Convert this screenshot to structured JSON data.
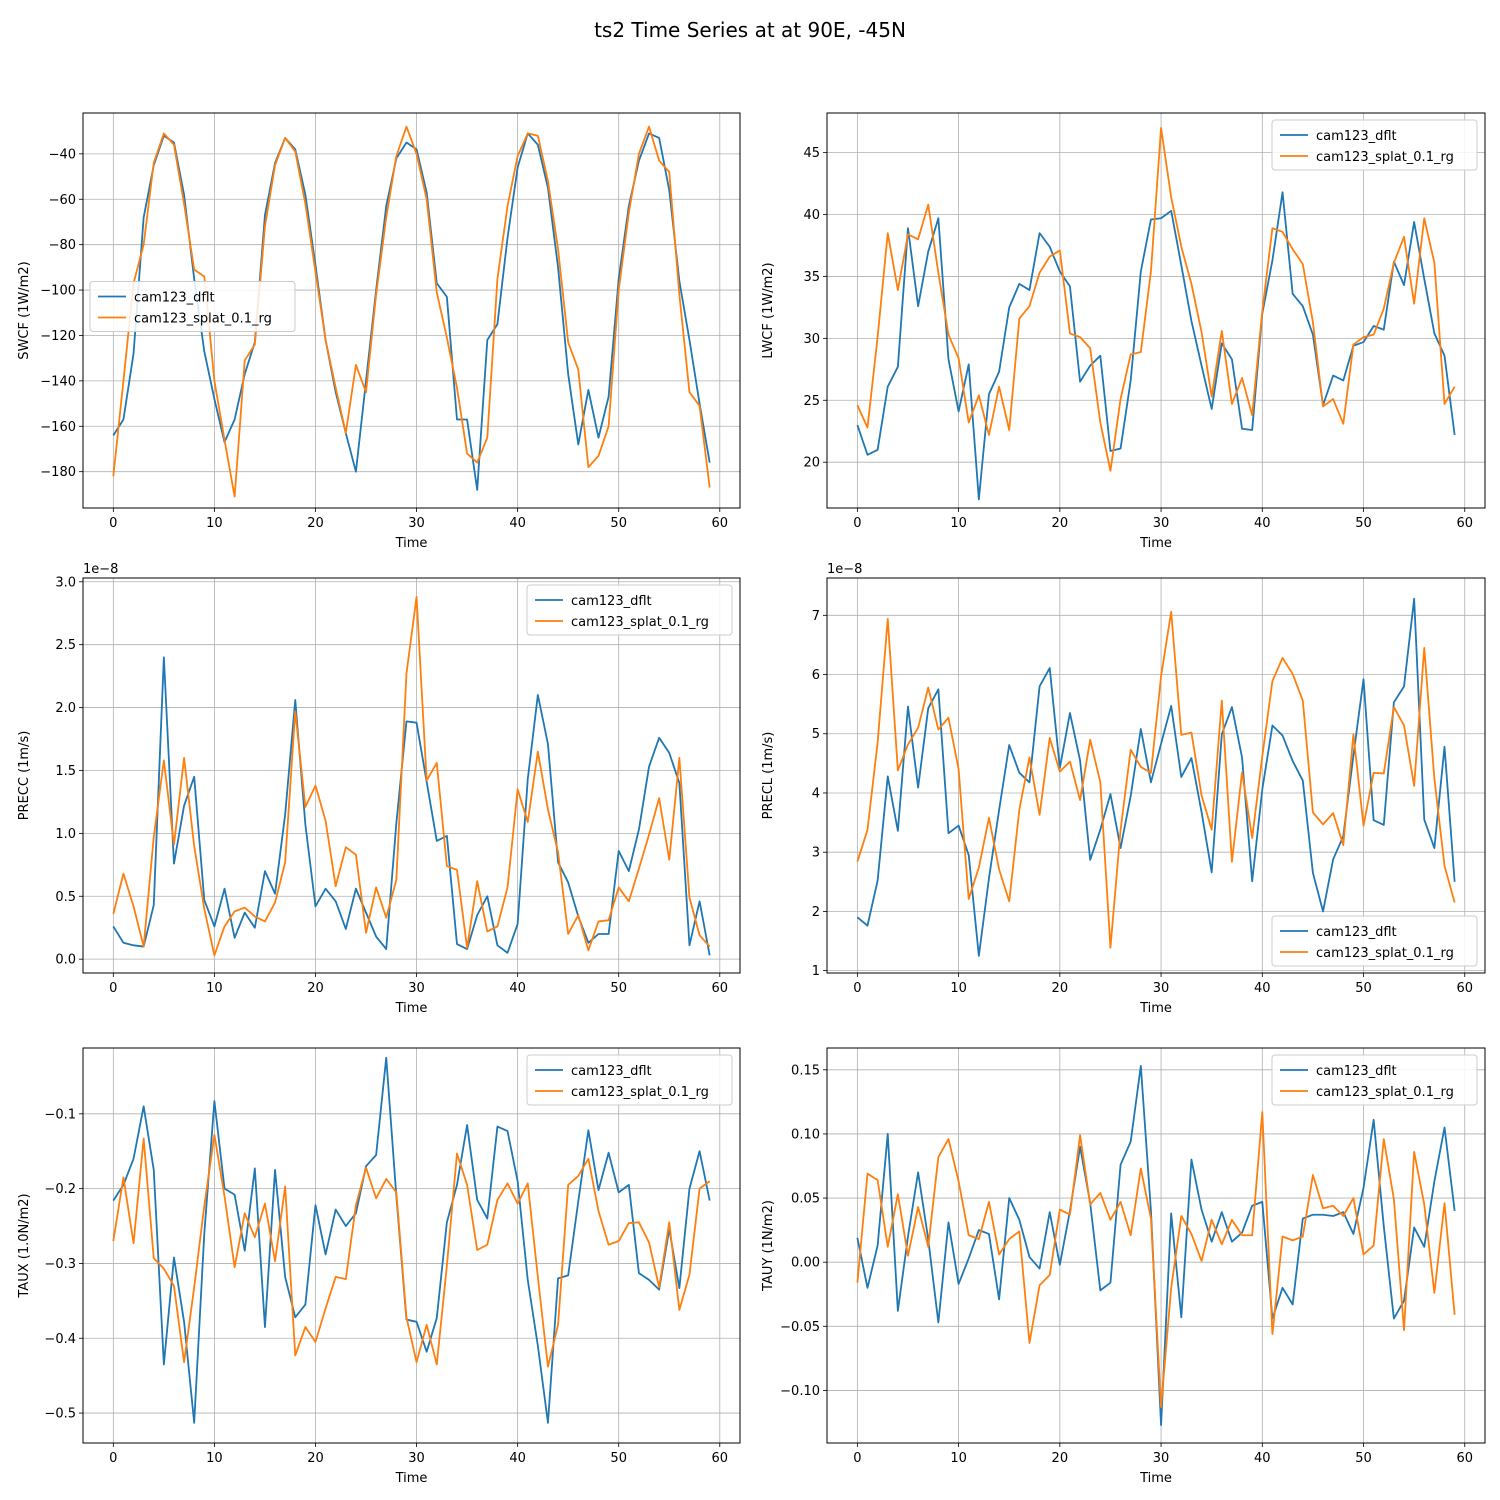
{
  "figure": {
    "title": "ts2 Time Series at at 90E, -45N"
  },
  "colors": {
    "cam123_dflt": "#1f77b4",
    "cam123_splat_0.1_rg": "#ff7f0e",
    "grid": "#b0b0b0"
  },
  "chart_data": [
    {
      "type": "line",
      "xlabel": "Time",
      "ylabel": "SWCF (1W/m2)",
      "xlim": [
        -3,
        62
      ],
      "ylim": [
        -196,
        -22
      ],
      "xticks": [
        0,
        10,
        20,
        30,
        40,
        50,
        60
      ],
      "yticks": [
        -40,
        -60,
        -80,
        -100,
        -120,
        -140,
        -160,
        -180
      ],
      "ytick_labels": [
        "−40",
        "−60",
        "−80",
        "−100",
        "−120",
        "−140",
        "−160",
        "−180"
      ],
      "offset_text": "",
      "legend": "center-left",
      "grid": true,
      "series": [
        {
          "name": "cam123_dflt",
          "values": [
            -164,
            -157,
            -128,
            -68,
            -45,
            -32,
            -35,
            -58,
            -95,
            -127,
            -148,
            -167,
            -157,
            -137,
            -123,
            -67,
            -44,
            -33,
            -38,
            -58,
            -89,
            -122,
            -145,
            -163,
            -180,
            -140,
            -100,
            -63,
            -42,
            -35,
            -38,
            -57,
            -97,
            -103,
            -157,
            -157,
            -188,
            -122,
            -115,
            -77,
            -46,
            -31,
            -36,
            -55,
            -90,
            -137,
            -168,
            -144,
            -165,
            -147,
            -95,
            -63,
            -43,
            -31,
            -33,
            -56,
            -96,
            -122,
            -150,
            -176
          ]
        },
        {
          "name": "cam123_splat_0.1_rg",
          "values": [
            -182,
            -140,
            -97,
            -80,
            -44,
            -31,
            -36,
            -62,
            -91,
            -94,
            -140,
            -166,
            -191,
            -131,
            -124,
            -72,
            -45,
            -33,
            -39,
            -62,
            -92,
            -122,
            -143,
            -163,
            -133,
            -145,
            -102,
            -68,
            -41,
            -28,
            -40,
            -60,
            -101,
            -121,
            -143,
            -172,
            -176,
            -165,
            -95,
            -63,
            -41,
            -31,
            -32,
            -52,
            -82,
            -123,
            -135,
            -178,
            -173,
            -160,
            -100,
            -66,
            -40,
            -28,
            -43,
            -48,
            -102,
            -145,
            -151,
            -187
          ]
        }
      ]
    },
    {
      "type": "line",
      "xlabel": "Time",
      "ylabel": "LWCF (1W/m2)",
      "xlim": [
        -3,
        62
      ],
      "ylim": [
        16.3,
        48.2
      ],
      "xticks": [
        0,
        10,
        20,
        30,
        40,
        50,
        60
      ],
      "yticks": [
        20,
        25,
        30,
        35,
        40,
        45
      ],
      "ytick_labels": [
        "20",
        "25",
        "30",
        "35",
        "40",
        "45"
      ],
      "offset_text": "",
      "legend": "top-right",
      "grid": true,
      "series": [
        {
          "name": "cam123_dflt",
          "values": [
            23.0,
            20.6,
            21.0,
            26.1,
            27.7,
            38.9,
            32.6,
            37.0,
            39.7,
            28.3,
            24.1,
            27.9,
            17.0,
            25.5,
            27.3,
            32.5,
            34.4,
            33.9,
            38.5,
            37.4,
            35.4,
            34.2,
            26.5,
            27.8,
            28.6,
            20.9,
            21.1,
            26.6,
            35.4,
            39.6,
            39.7,
            40.3,
            35.9,
            31.4,
            27.8,
            24.3,
            29.6,
            28.3,
            22.7,
            22.6,
            32.0,
            36.3,
            41.8,
            33.6,
            32.6,
            30.3,
            24.6,
            27.0,
            26.6,
            29.4,
            29.7,
            31.0,
            30.7,
            36.2,
            34.3,
            39.4,
            34.8,
            30.4,
            28.6,
            22.2
          ]
        },
        {
          "name": "cam123_splat_0.1_rg",
          "values": [
            24.6,
            22.8,
            30.1,
            38.5,
            33.9,
            38.4,
            38.0,
            40.8,
            35.3,
            30.3,
            28.4,
            23.2,
            25.4,
            22.2,
            26.1,
            22.6,
            31.6,
            32.6,
            35.3,
            36.6,
            37.1,
            30.4,
            30.1,
            29.2,
            23.2,
            19.3,
            25.1,
            28.7,
            28.9,
            35.4,
            47.0,
            41.4,
            37.4,
            34.4,
            30.5,
            25.3,
            30.6,
            24.7,
            26.8,
            23.8,
            32.2,
            38.9,
            38.6,
            37.2,
            36.0,
            31.3,
            24.5,
            25.1,
            23.1,
            29.5,
            30.1,
            30.3,
            32.4,
            36.1,
            38.2,
            32.8,
            39.7,
            36.1,
            24.7,
            26.1
          ]
        }
      ]
    },
    {
      "type": "line",
      "xlabel": "Time",
      "ylabel": "PRECC (1m/s)",
      "xlim": [
        -3,
        62
      ],
      "ylim": [
        -0.11,
        3.03
      ],
      "xticks": [
        0,
        10,
        20,
        30,
        40,
        50,
        60
      ],
      "yticks": [
        0.0,
        0.5,
        1.0,
        1.5,
        2.0,
        2.5,
        3.0
      ],
      "ytick_labels": [
        "0.0",
        "0.5",
        "1.0",
        "1.5",
        "2.0",
        "2.5",
        "3.0"
      ],
      "offset_text": "1e−8",
      "legend": "top-right",
      "grid": true,
      "series": [
        {
          "name": "cam123_dflt",
          "values": [
            0.26,
            0.13,
            0.11,
            0.1,
            0.43,
            2.4,
            0.76,
            1.22,
            1.45,
            0.47,
            0.26,
            0.56,
            0.17,
            0.37,
            0.25,
            0.7,
            0.52,
            1.15,
            2.06,
            1.07,
            0.42,
            0.56,
            0.46,
            0.24,
            0.56,
            0.37,
            0.18,
            0.08,
            1.08,
            1.89,
            1.88,
            1.41,
            0.94,
            0.98,
            0.12,
            0.08,
            0.35,
            0.5,
            0.11,
            0.05,
            0.28,
            1.43,
            2.1,
            1.71,
            0.77,
            0.61,
            0.34,
            0.13,
            0.2,
            0.2,
            0.86,
            0.7,
            1.03,
            1.53,
            1.76,
            1.64,
            1.4,
            0.11,
            0.46,
            0.03
          ]
        },
        {
          "name": "cam123_splat_0.1_rg",
          "values": [
            0.36,
            0.68,
            0.42,
            0.1,
            0.97,
            1.58,
            0.91,
            1.6,
            0.9,
            0.4,
            0.03,
            0.26,
            0.38,
            0.41,
            0.34,
            0.3,
            0.45,
            0.77,
            1.97,
            1.21,
            1.38,
            1.1,
            0.58,
            0.89,
            0.83,
            0.21,
            0.57,
            0.33,
            0.63,
            2.27,
            2.88,
            1.42,
            1.56,
            0.74,
            0.71,
            0.09,
            0.62,
            0.22,
            0.26,
            0.57,
            1.35,
            1.09,
            1.65,
            1.19,
            0.85,
            0.2,
            0.35,
            0.07,
            0.3,
            0.31,
            0.57,
            0.46,
            0.72,
            0.99,
            1.28,
            0.79,
            1.6,
            0.49,
            0.19,
            0.1
          ]
        }
      ]
    },
    {
      "type": "line",
      "xlabel": "Time",
      "ylabel": "PRECL (1m/s)",
      "xlim": [
        -3,
        62
      ],
      "ylim": [
        0.96,
        7.63
      ],
      "xticks": [
        0,
        10,
        20,
        30,
        40,
        50,
        60
      ],
      "yticks": [
        1,
        2,
        3,
        4,
        5,
        6,
        7
      ],
      "ytick_labels": [
        "1",
        "2",
        "3",
        "4",
        "5",
        "6",
        "7"
      ],
      "offset_text": "1e−8",
      "legend": "bottom-right",
      "grid": true,
      "series": [
        {
          "name": "cam123_dflt",
          "values": [
            1.9,
            1.76,
            2.52,
            4.28,
            3.36,
            5.46,
            4.09,
            5.43,
            5.75,
            3.32,
            3.45,
            2.95,
            1.25,
            2.56,
            3.71,
            4.81,
            4.34,
            4.18,
            5.8,
            6.11,
            4.42,
            5.35,
            4.55,
            2.87,
            3.38,
            3.98,
            3.07,
            3.95,
            5.08,
            4.18,
            4.83,
            5.47,
            4.27,
            4.59,
            3.68,
            2.66,
            4.99,
            5.45,
            4.6,
            2.51,
            4.06,
            5.14,
            4.97,
            4.54,
            4.21,
            2.65,
            2.0,
            2.88,
            3.27,
            4.63,
            5.92,
            3.54,
            3.46,
            5.53,
            5.8,
            7.28,
            3.55,
            3.07,
            4.78,
            2.5
          ]
        },
        {
          "name": "cam123_splat_0.1_rg",
          "values": [
            2.84,
            3.38,
            4.85,
            6.94,
            4.38,
            4.82,
            5.1,
            5.78,
            5.07,
            5.27,
            4.4,
            2.21,
            2.74,
            3.58,
            2.71,
            2.17,
            3.72,
            4.6,
            3.63,
            4.93,
            4.36,
            4.53,
            3.88,
            4.9,
            4.18,
            1.39,
            3.38,
            4.73,
            4.44,
            4.34,
            5.97,
            7.06,
            4.98,
            5.02,
            3.96,
            3.38,
            5.56,
            2.84,
            4.35,
            3.24,
            4.62,
            5.89,
            6.28,
            6.01,
            5.56,
            3.67,
            3.47,
            3.66,
            3.12,
            4.99,
            3.45,
            4.34,
            4.33,
            5.45,
            5.14,
            4.12,
            6.45,
            4.24,
            2.77,
            2.15
          ]
        }
      ]
    },
    {
      "type": "line",
      "xlabel": "Time",
      "ylabel": "TAUX (1.0N/m2)",
      "xlim": [
        -3,
        62
      ],
      "ylim": [
        -0.54,
        -0.012
      ],
      "xticks": [
        0,
        10,
        20,
        30,
        40,
        50,
        60
      ],
      "yticks": [
        -0.1,
        -0.2,
        -0.3,
        -0.4,
        -0.5
      ],
      "ytick_labels": [
        "−0.1",
        "−0.2",
        "−0.3",
        "−0.4",
        "−0.5"
      ],
      "offset_text": "",
      "legend": "top-right",
      "grid": true,
      "series": [
        {
          "name": "cam123_dflt",
          "values": [
            -0.216,
            -0.195,
            -0.16,
            -0.09,
            -0.175,
            -0.435,
            -0.292,
            -0.378,
            -0.513,
            -0.26,
            -0.083,
            -0.2,
            -0.208,
            -0.283,
            -0.173,
            -0.385,
            -0.175,
            -0.318,
            -0.372,
            -0.355,
            -0.222,
            -0.288,
            -0.228,
            -0.25,
            -0.233,
            -0.17,
            -0.155,
            -0.025,
            -0.21,
            -0.375,
            -0.378,
            -0.418,
            -0.373,
            -0.245,
            -0.195,
            -0.115,
            -0.215,
            -0.24,
            -0.117,
            -0.123,
            -0.19,
            -0.322,
            -0.41,
            -0.513,
            -0.32,
            -0.316,
            -0.217,
            -0.122,
            -0.202,
            -0.152,
            -0.205,
            -0.195,
            -0.313,
            -0.322,
            -0.335,
            -0.254,
            -0.333,
            -0.2,
            -0.15,
            -0.216
          ]
        },
        {
          "name": "cam123_splat_0.1_rg",
          "values": [
            -0.27,
            -0.185,
            -0.273,
            -0.133,
            -0.293,
            -0.307,
            -0.33,
            -0.432,
            -0.332,
            -0.223,
            -0.128,
            -0.21,
            -0.305,
            -0.233,
            -0.265,
            -0.22,
            -0.297,
            -0.197,
            -0.423,
            -0.385,
            -0.405,
            -0.36,
            -0.318,
            -0.321,
            -0.222,
            -0.172,
            -0.213,
            -0.187,
            -0.205,
            -0.372,
            -0.432,
            -0.382,
            -0.435,
            -0.303,
            -0.153,
            -0.195,
            -0.282,
            -0.275,
            -0.215,
            -0.193,
            -0.22,
            -0.193,
            -0.318,
            -0.438,
            -0.382,
            -0.195,
            -0.183,
            -0.16,
            -0.23,
            -0.275,
            -0.27,
            -0.246,
            -0.245,
            -0.272,
            -0.332,
            -0.245,
            -0.362,
            -0.315,
            -0.2,
            -0.19
          ]
        }
      ]
    },
    {
      "type": "line",
      "xlabel": "Time",
      "ylabel": "TAUY (1N/m2)",
      "xlim": [
        -3,
        62
      ],
      "ylim": [
        -0.141,
        0.167
      ],
      "xticks": [
        0,
        10,
        20,
        30,
        40,
        50,
        60
      ],
      "yticks": [
        -0.1,
        -0.05,
        0.0,
        0.05,
        0.1,
        0.15
      ],
      "ytick_labels": [
        "−0.10",
        "−0.05",
        "0.00",
        "0.05",
        "0.10",
        "0.15"
      ],
      "offset_text": "",
      "legend": "top-right",
      "grid": true,
      "series": [
        {
          "name": "cam123_dflt",
          "values": [
            0.019,
            -0.02,
            0.013,
            0.1,
            -0.038,
            0.02,
            0.07,
            0.018,
            -0.047,
            0.031,
            -0.017,
            0.003,
            0.025,
            0.022,
            -0.029,
            0.05,
            0.033,
            0.004,
            -0.005,
            0.039,
            -0.002,
            0.04,
            0.09,
            0.046,
            -0.022,
            -0.016,
            0.076,
            0.094,
            0.153,
            0.04,
            -0.127,
            0.038,
            -0.043,
            0.08,
            0.041,
            0.016,
            0.039,
            0.016,
            0.023,
            0.044,
            0.047,
            -0.044,
            -0.02,
            -0.033,
            0.034,
            0.037,
            0.037,
            0.036,
            0.039,
            0.022,
            0.058,
            0.111,
            0.028,
            -0.044,
            -0.03,
            0.027,
            0.012,
            0.063,
            0.105,
            0.04
          ]
        },
        {
          "name": "cam123_splat_0.1_rg",
          "values": [
            -0.016,
            0.069,
            0.064,
            0.012,
            0.053,
            0.005,
            0.043,
            0.012,
            0.082,
            0.096,
            0.063,
            0.021,
            0.018,
            0.047,
            0.006,
            0.018,
            0.024,
            -0.063,
            -0.018,
            -0.01,
            0.041,
            0.037,
            0.099,
            0.045,
            0.054,
            0.033,
            0.047,
            0.021,
            0.073,
            0.034,
            -0.113,
            -0.02,
            0.036,
            0.022,
            0.001,
            0.033,
            0.014,
            0.033,
            0.021,
            0.021,
            0.117,
            -0.056,
            0.02,
            0.017,
            0.02,
            0.068,
            0.042,
            0.044,
            0.036,
            0.05,
            0.006,
            0.013,
            0.096,
            0.049,
            -0.053,
            0.086,
            0.045,
            -0.024,
            0.046,
            -0.041
          ]
        }
      ]
    }
  ]
}
